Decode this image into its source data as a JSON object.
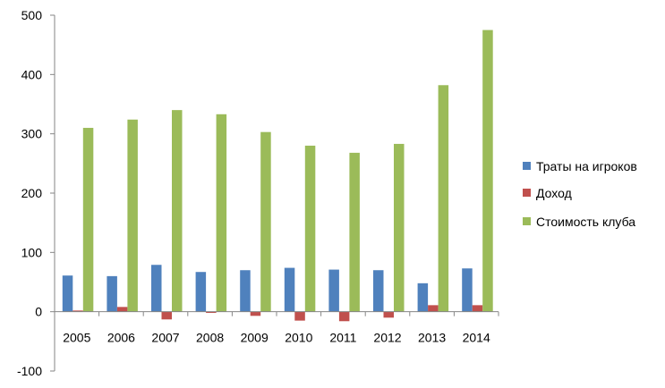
{
  "chart_data": {
    "type": "bar",
    "categories": [
      "2005",
      "2006",
      "2007",
      "2008",
      "2009",
      "2010",
      "2011",
      "2012",
      "2013",
      "2014"
    ],
    "series": [
      {
        "name": "Траты на игроков",
        "color": "#4F81BD",
        "values": [
          61,
          60,
          79,
          67,
          70,
          74,
          71,
          70,
          48,
          73
        ]
      },
      {
        "name": "Доход",
        "color": "#C0504D",
        "values": [
          2,
          8,
          -13,
          -2,
          -7,
          -15,
          -16,
          -10,
          11,
          11
        ]
      },
      {
        "name": "Стоимость клуба",
        "color": "#9BBB59",
        "values": [
          310,
          324,
          340,
          333,
          303,
          280,
          268,
          283,
          382,
          475
        ]
      }
    ],
    "y_ticks": [
      "500",
      "400",
      "300",
      "200",
      "100",
      "0",
      "-100"
    ],
    "ylim": [
      -100,
      500
    ],
    "grid": false,
    "legend": "right"
  }
}
